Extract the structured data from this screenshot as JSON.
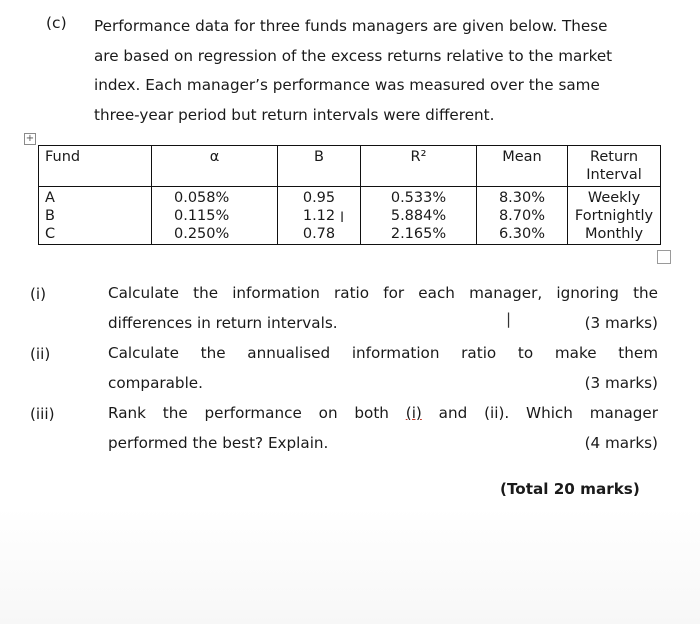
{
  "question": {
    "label": "(c)",
    "intro_lines": [
      "Performance data for three funds managers are given below. These",
      "are based on regression of the excess returns relative to the market",
      "index. Each manager’s performance was measured over the same",
      "three-year period but return intervals were different."
    ]
  },
  "table": {
    "headers": {
      "fund": "Fund",
      "alpha": "α",
      "beta": "B",
      "r2": "R²",
      "mean": "Mean",
      "return_interval_1": "Return",
      "return_interval_2": "Interval"
    },
    "fund": [
      "A",
      "B",
      "C"
    ],
    "alpha": [
      "0.058%",
      "0.115%",
      "0.250%"
    ],
    "beta": [
      "0.95",
      "1.12",
      "0.78"
    ],
    "r2": [
      "0.533%",
      "5.884%",
      "2.165%"
    ],
    "mean": [
      "8.30%",
      "8.70%",
      "6.30%"
    ],
    "return_interval": [
      "Weekly",
      "Fortnightly",
      "Monthly"
    ]
  },
  "parts": [
    {
      "num": "(i)",
      "line1": "Calculate the information ratio for each manager, ignoring the",
      "line2": "differences in return intervals.",
      "marks": "(3 marks)"
    },
    {
      "num": "(ii)",
      "line1": "Calculate the annualised information ratio to make them",
      "line2": "comparable.",
      "marks": "(3 marks)"
    },
    {
      "num": "(iii)",
      "line1_a": "Rank the performance on both ",
      "line1_ref": "(i)",
      "line1_b": " and (ii). Which manager",
      "line2": "performed the best? Explain.",
      "marks": "(4 marks)"
    }
  ],
  "total": "(Total 20 marks)",
  "icons": {
    "move_handle": "move-icon",
    "resize_handle": "resize-handle-icon"
  }
}
